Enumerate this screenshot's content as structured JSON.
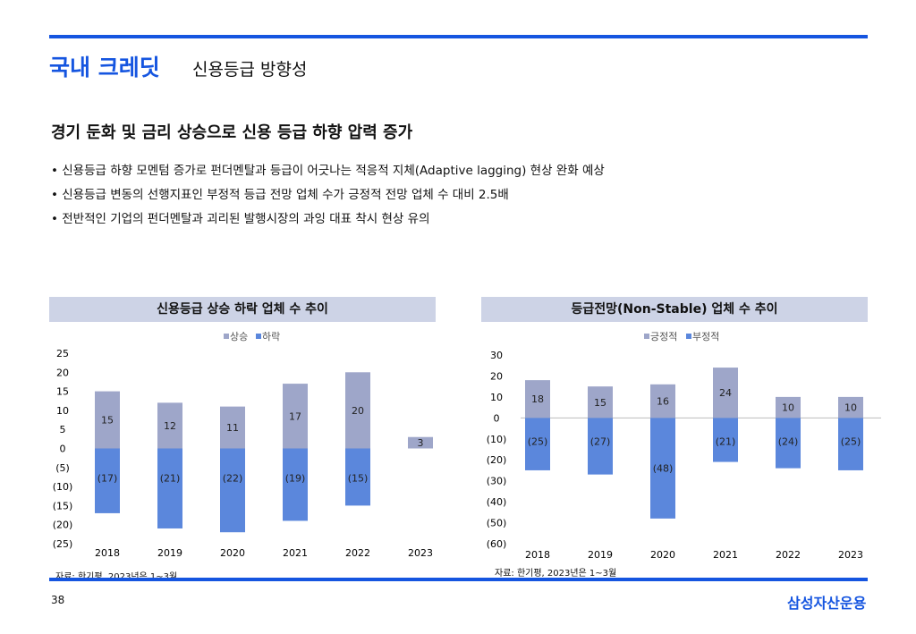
{
  "header": {
    "title": "국내 크레딧",
    "subtitle": "신용등급 방향성"
  },
  "headline": "경기 둔화 및 금리 상승으로 신용 등급 하향 압력 증가",
  "bullets": [
    "신용등급  하향 모멘텀 증가로  펀더멘탈과 등급이 어긋나는 적응적 지체(Adaptive lagging) 현상 완화 예상",
    "신용등급 변동의 선행지표인 부정적 등급 전망 업체 수가 긍정적 전망 업체 수 대비 2.5배",
    "전반적인 기업의 펀더멘탈과 괴리된 발행시장의 과잉 대표 착시 현상 유의"
  ],
  "footer": {
    "page": "38",
    "brand": "삼성자산운용"
  },
  "chart_data": [
    {
      "type": "bar",
      "title": "신용등급 상승 하락 업체 수 추이",
      "categories": [
        "2018",
        "2019",
        "2020",
        "2021",
        "2022",
        "2023"
      ],
      "series": [
        {
          "name": "상승",
          "values": [
            15,
            12,
            11,
            17,
            20,
            3
          ],
          "color": "#9ea6c9"
        },
        {
          "name": "하락",
          "values": [
            -17,
            -21,
            -22,
            -19,
            -15,
            null
          ],
          "color": "#5b87dc"
        }
      ],
      "ylim": [
        -25,
        25
      ],
      "yticks": [
        25,
        20,
        15,
        10,
        5,
        0,
        -5,
        -10,
        -15,
        -20,
        -25
      ],
      "legend": "top-center",
      "source": "자료: 한기평, 2023년은 1~3월"
    },
    {
      "type": "bar",
      "title": "등급전망(Non-Stable) 업체 수 추이",
      "categories": [
        "2018",
        "2019",
        "2020",
        "2021",
        "2022",
        "2023"
      ],
      "series": [
        {
          "name": "긍정적",
          "values": [
            18,
            15,
            16,
            24,
            10,
            10
          ],
          "color": "#9ea6c9"
        },
        {
          "name": "부정적",
          "values": [
            -25,
            -27,
            -48,
            -21,
            -24,
            -25
          ],
          "color": "#5b87dc"
        }
      ],
      "ylim": [
        -60,
        30
      ],
      "yticks": [
        30,
        20,
        10,
        0,
        -10,
        -20,
        -30,
        -40,
        -50,
        -60
      ],
      "legend": "top-center",
      "source": "자료: 한기평, 2023년은 1~3월"
    }
  ]
}
